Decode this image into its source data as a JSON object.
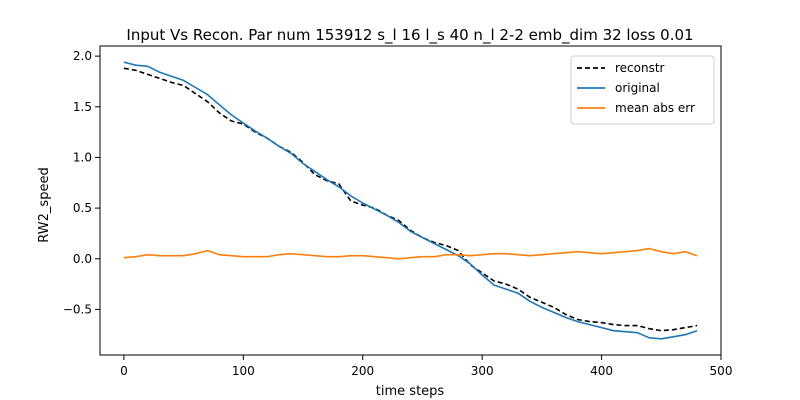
{
  "chart_data": {
    "type": "line",
    "title": "Input Vs Recon. Par num 153912 s_l 16 l_s 40 n_l 2-2 emb_dim 32 loss 0.01",
    "xlabel": "time steps",
    "ylabel": "RW2_speed",
    "xlim": [
      -20,
      500
    ],
    "ylim": [
      -0.95,
      2.1
    ],
    "xticks": [
      0,
      100,
      200,
      300,
      400,
      500
    ],
    "yticks": [
      -0.5,
      0.0,
      0.5,
      1.0,
      1.5,
      2.0
    ],
    "xtick_labels": [
      "0",
      "100",
      "200",
      "300",
      "400",
      "500"
    ],
    "ytick_labels": [
      "−0.5",
      "0.0",
      "0.5",
      "1.0",
      "1.5",
      "2.0"
    ],
    "grid": false,
    "legend_position": "top-right",
    "series": [
      {
        "name": "reconstr",
        "color": "#000000",
        "style": "dashed",
        "x": [
          0,
          10,
          20,
          30,
          40,
          50,
          60,
          70,
          80,
          90,
          100,
          110,
          120,
          130,
          140,
          150,
          160,
          170,
          180,
          190,
          200,
          210,
          220,
          230,
          240,
          250,
          260,
          270,
          280,
          290,
          300,
          310,
          320,
          330,
          340,
          350,
          360,
          370,
          380,
          390,
          400,
          410,
          420,
          430,
          440,
          450,
          460,
          470,
          480
        ],
        "y": [
          1.88,
          1.86,
          1.82,
          1.78,
          1.74,
          1.71,
          1.63,
          1.55,
          1.44,
          1.36,
          1.33,
          1.25,
          1.19,
          1.11,
          1.05,
          0.95,
          0.83,
          0.77,
          0.74,
          0.57,
          0.53,
          0.5,
          0.43,
          0.38,
          0.28,
          0.21,
          0.16,
          0.13,
          0.08,
          -0.06,
          -0.14,
          -0.22,
          -0.25,
          -0.3,
          -0.38,
          -0.43,
          -0.48,
          -0.55,
          -0.6,
          -0.62,
          -0.63,
          -0.65,
          -0.66,
          -0.66,
          -0.69,
          -0.71,
          -0.7,
          -0.68,
          -0.66
        ]
      },
      {
        "name": "original",
        "color": "#1f77b4",
        "style": "solid",
        "x": [
          0,
          10,
          20,
          30,
          40,
          50,
          60,
          70,
          80,
          90,
          100,
          110,
          120,
          130,
          140,
          150,
          160,
          170,
          180,
          190,
          200,
          210,
          220,
          230,
          240,
          250,
          260,
          270,
          280,
          290,
          300,
          310,
          320,
          330,
          340,
          350,
          360,
          370,
          380,
          390,
          400,
          410,
          420,
          430,
          440,
          450,
          460,
          470,
          480
        ],
        "y": [
          1.94,
          1.91,
          1.9,
          1.84,
          1.8,
          1.76,
          1.69,
          1.62,
          1.52,
          1.42,
          1.34,
          1.26,
          1.19,
          1.11,
          1.04,
          0.94,
          0.86,
          0.78,
          0.71,
          0.62,
          0.55,
          0.49,
          0.43,
          0.36,
          0.27,
          0.21,
          0.15,
          0.09,
          0.03,
          -0.05,
          -0.16,
          -0.26,
          -0.3,
          -0.34,
          -0.42,
          -0.48,
          -0.53,
          -0.58,
          -0.62,
          -0.65,
          -0.68,
          -0.71,
          -0.72,
          -0.73,
          -0.78,
          -0.79,
          -0.77,
          -0.75,
          -0.71
        ]
      },
      {
        "name": "mean abs err",
        "color": "#ff7f0e",
        "style": "solid",
        "x": [
          0,
          10,
          20,
          30,
          40,
          50,
          60,
          70,
          80,
          90,
          100,
          110,
          120,
          130,
          140,
          150,
          160,
          170,
          180,
          190,
          200,
          210,
          220,
          230,
          240,
          250,
          260,
          270,
          280,
          290,
          300,
          310,
          320,
          330,
          340,
          350,
          360,
          370,
          380,
          390,
          400,
          410,
          420,
          430,
          440,
          450,
          460,
          470,
          480
        ],
        "y": [
          0.01,
          0.02,
          0.04,
          0.03,
          0.03,
          0.03,
          0.05,
          0.08,
          0.04,
          0.03,
          0.02,
          0.02,
          0.02,
          0.04,
          0.05,
          0.04,
          0.03,
          0.02,
          0.02,
          0.03,
          0.03,
          0.02,
          0.01,
          0.0,
          0.01,
          0.02,
          0.02,
          0.04,
          0.04,
          0.03,
          0.04,
          0.05,
          0.05,
          0.04,
          0.03,
          0.04,
          0.05,
          0.06,
          0.07,
          0.06,
          0.05,
          0.06,
          0.07,
          0.08,
          0.1,
          0.07,
          0.05,
          0.07,
          0.03
        ]
      }
    ]
  }
}
